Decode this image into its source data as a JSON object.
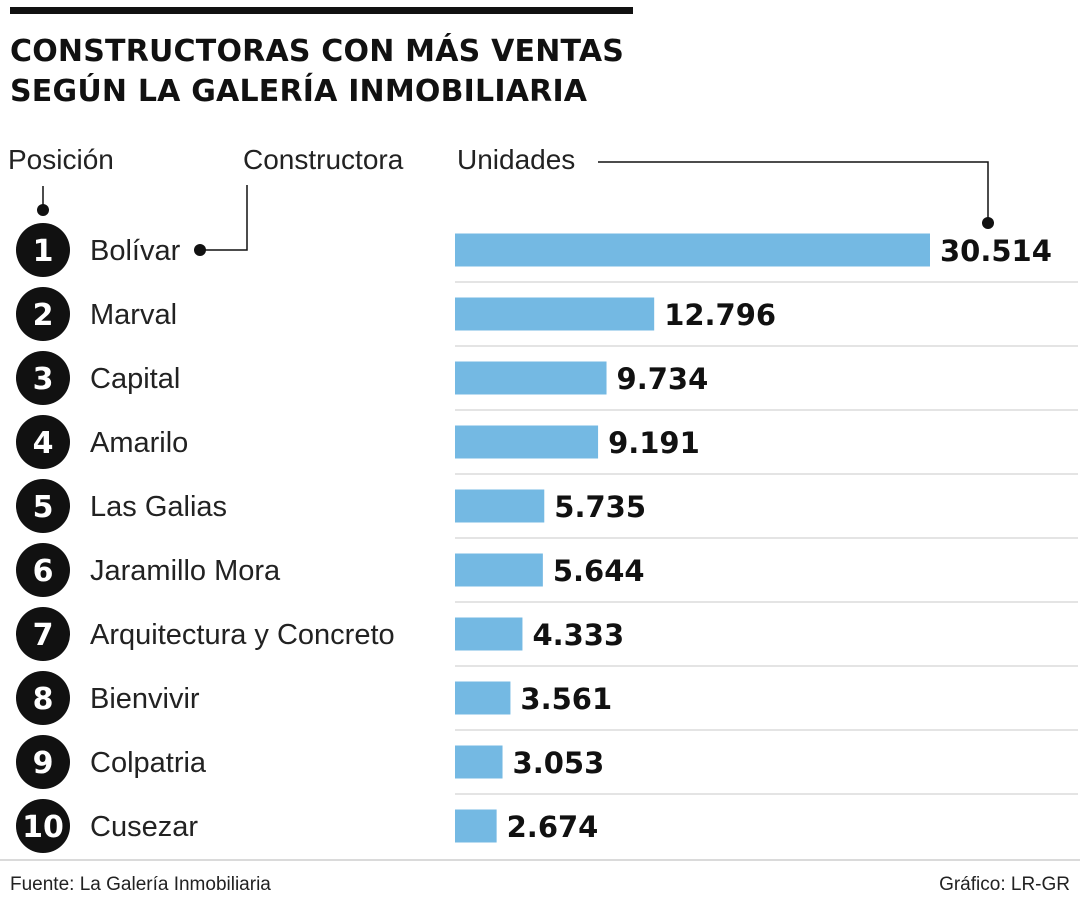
{
  "title_lines": [
    "CONSTRUCTORAS CON MÁS VENTAS",
    "SEGÚN LA GALERÍA INMOBILIARIA"
  ],
  "headers": {
    "position": "Posición",
    "builder": "Constructora",
    "units": "Unidades"
  },
  "chart_data": {
    "type": "bar",
    "orientation": "horizontal",
    "title": "CONSTRUCTORAS CON MÁS VENTAS SEGÚN LA GALERÍA INMOBILIARIA",
    "xlabel": "Unidades",
    "ylabel": "Constructora",
    "xlim": [
      0,
      30514
    ],
    "bar_color": "#74b9e3",
    "positions": [
      "1",
      "2",
      "3",
      "4",
      "5",
      "6",
      "7",
      "8",
      "9",
      "10"
    ],
    "categories": [
      "Bolívar",
      "Marval",
      "Capital",
      "Amarilo",
      "Las Galias",
      "Jaramillo Mora",
      "Arquitectura y Concreto",
      "Bienvivir",
      "Colpatria",
      "Cusezar"
    ],
    "values": [
      30514,
      12796,
      9734,
      9191,
      5735,
      5644,
      4333,
      3561,
      3053,
      2674
    ],
    "value_labels": [
      "30.514",
      "12.796",
      "9.734",
      "9.191",
      "5.735",
      "5.644",
      "4.333",
      "3.561",
      "3.053",
      "2.674"
    ]
  },
  "footer": {
    "source": "Fuente: La Galería Inmobiliaria",
    "credit": "Gráfico: LR-GR"
  }
}
